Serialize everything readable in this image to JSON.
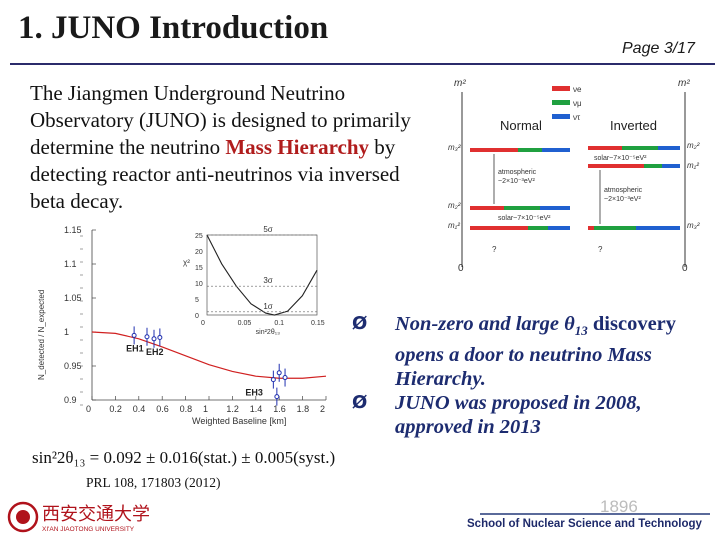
{
  "slide": {
    "title": "1. JUNO Introduction",
    "page": "Page 3/17",
    "intro": {
      "text_a": "The Jiangmen Underground Neutrino Observatory (JUNO) is designed to primarily determine the neutrino ",
      "highlight": "Mass Hierarchy",
      "text_b": " by detecting reactor anti-neutrinos via inversed beta decay."
    },
    "bullets": [
      {
        "marker": "Ø",
        "lead": "Non-zero and large θ",
        "sub": "13",
        "text": " discovery ",
        "em": "opens a door to neutrino Mass Hierarchy."
      },
      {
        "marker": "Ø",
        "text": "JUNO was proposed in 2008, approved in 2013"
      }
    ],
    "citation": "PRL 108, 171803 (2012)",
    "formula": "sin²2θ₁₃ = 0.092 ± 0.016(stat.) ± 0.005(syst.)",
    "footer": {
      "school": "School of Nuclear Science and Technology",
      "watermark": "1896",
      "university_cn": "西安交通大学",
      "university_en": "XI'AN JIAOTONG UNIVERSITY"
    }
  },
  "hierarchy_diagram": {
    "axis_label": "m²",
    "legend": [
      "νe",
      "νμ",
      "ντ"
    ],
    "legend_colors": [
      "#e03030",
      "#20a040",
      "#2060d0"
    ],
    "normal_label": "Normal",
    "inverted_label": "Inverted",
    "levels_normal": [
      "m₃²",
      "m₂²",
      "m₁²"
    ],
    "levels_inverted": [
      "m₂²",
      "m₁²",
      "m₃²"
    ],
    "atm_normal": [
      "atmospheric",
      "~2×10⁻³eV²"
    ],
    "atm_inverted": [
      "atmospheric",
      "~2×10⁻³eV²"
    ],
    "solar_normal": "solar~7×10⁻⁵eV²",
    "solar_inverted": "solar~7×10⁻⁵eV²",
    "question": "?",
    "zero": "0"
  },
  "chart_data": [
    {
      "type": "scatter",
      "xlabel": "Weighted Baseline [km]",
      "ylabel": "N_detected / N_expected",
      "xlim": [
        0,
        2
      ],
      "ylim": [
        0.9,
        1.15
      ],
      "x_ticks": [
        "0",
        "0.2",
        "0.4",
        "0.6",
        "0.8",
        "1",
        "1.2",
        "1.4",
        "1.6",
        "1.8",
        "2"
      ],
      "y_ticks": [
        "0.9",
        "0.95",
        "1",
        "1.05",
        "1.1",
        "1.15"
      ],
      "series": [
        {
          "name": "EH1",
          "x": [
            0.36,
            0.47
          ],
          "y": [
            0.995,
            0.993
          ]
        },
        {
          "name": "EH2",
          "x": [
            0.53,
            0.58
          ],
          "y": [
            0.99,
            0.992
          ]
        },
        {
          "name": "EH3",
          "x": [
            1.55,
            1.58,
            1.6,
            1.65
          ],
          "y": [
            0.93,
            0.905,
            0.94,
            0.933
          ]
        }
      ],
      "curve": {
        "x": [
          0,
          0.2,
          0.4,
          0.6,
          0.8,
          1.0,
          1.2,
          1.4,
          1.6,
          1.8,
          2.0
        ],
        "y": [
          1.0,
          0.998,
          0.99,
          0.978,
          0.965,
          0.952,
          0.942,
          0.935,
          0.932,
          0.932,
          0.935
        ]
      }
    },
    {
      "type": "line",
      "xlabel": "sin²2θ₁₃",
      "ylabel": "χ²",
      "xlim": [
        0,
        0.15
      ],
      "ylim": [
        0,
        25
      ],
      "x_ticks": [
        "0",
        "0.05",
        "0.1",
        "0.15"
      ],
      "y_ticks": [
        "0",
        "5",
        "10",
        "15",
        "20",
        "25"
      ],
      "annotations": [
        "5σ",
        "3σ",
        "1σ"
      ],
      "curve": {
        "x": [
          0.0,
          0.02,
          0.04,
          0.06,
          0.08,
          0.092,
          0.11,
          0.13,
          0.15
        ],
        "y": [
          25,
          16,
          9,
          3.5,
          0.6,
          0,
          1.2,
          6,
          14
        ]
      }
    }
  ]
}
